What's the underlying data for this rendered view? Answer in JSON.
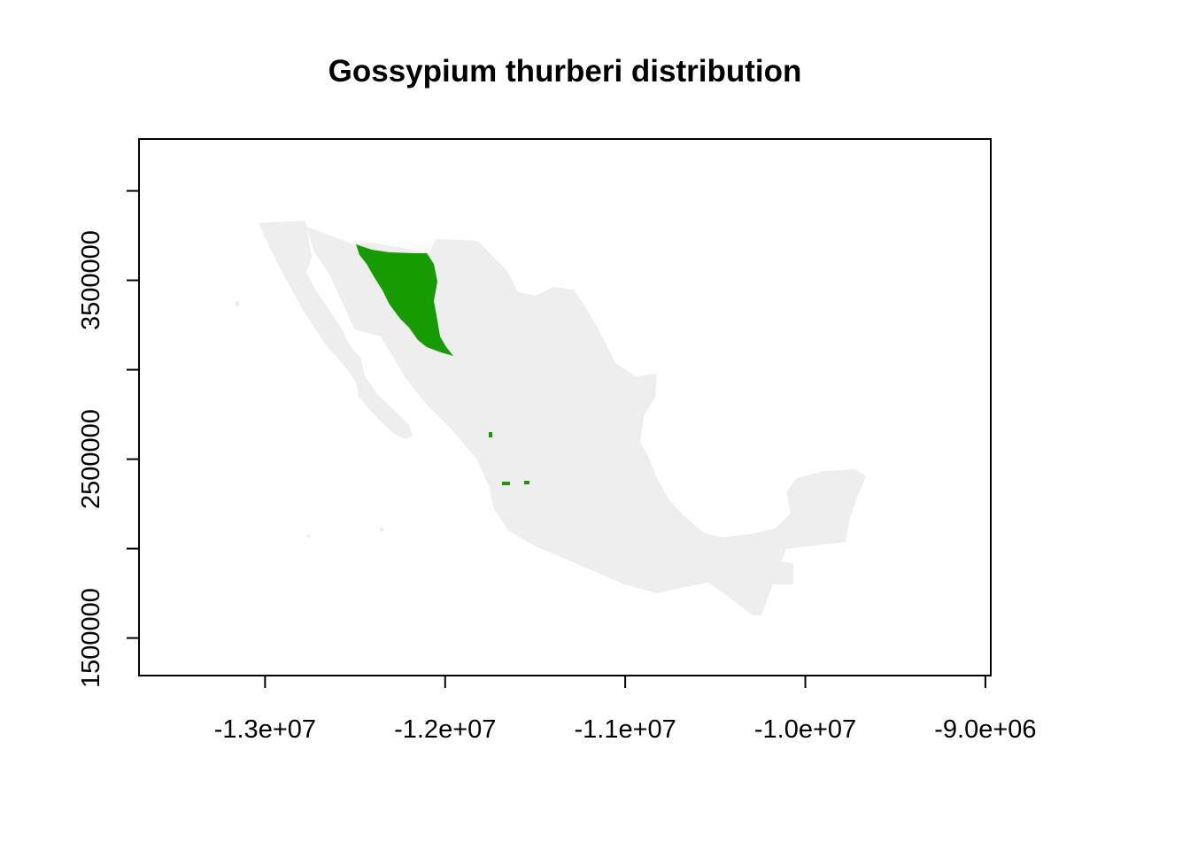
{
  "title": "Gossypium thurberi distribution",
  "colors": {
    "background": "#ffffff",
    "land": "#eeeeee",
    "distribution": "#169b00",
    "axes": "#000000"
  },
  "chart_data": {
    "type": "raster-map",
    "title": "Gossypium thurberi distribution",
    "xlabel": "",
    "ylabel": "",
    "x_ticks": [
      {
        "value": -13000000,
        "label": "-1.3e+07"
      },
      {
        "value": -12000000,
        "label": "-1.2e+07"
      },
      {
        "value": -11000000,
        "label": "-1.1e+07"
      },
      {
        "value": -10000000,
        "label": "-1.0e+07"
      },
      {
        "value": -9000000,
        "label": "-9.0e+06"
      }
    ],
    "y_ticks": [
      {
        "value": 1500000,
        "label": "1500000"
      },
      {
        "value": 2000000,
        "label": ""
      },
      {
        "value": 2500000,
        "label": "2500000"
      },
      {
        "value": 3000000,
        "label": ""
      },
      {
        "value": 3500000,
        "label": "3500000"
      },
      {
        "value": 4000000,
        "label": ""
      }
    ],
    "xlim": [
      -13700000,
      -8970000
    ],
    "ylim": [
      1290000,
      4290000
    ],
    "grid": false,
    "legend": "none",
    "layers": [
      {
        "name": "land",
        "color": "#eeeeee"
      },
      {
        "name": "distribution",
        "color": "#169b00"
      }
    ]
  }
}
